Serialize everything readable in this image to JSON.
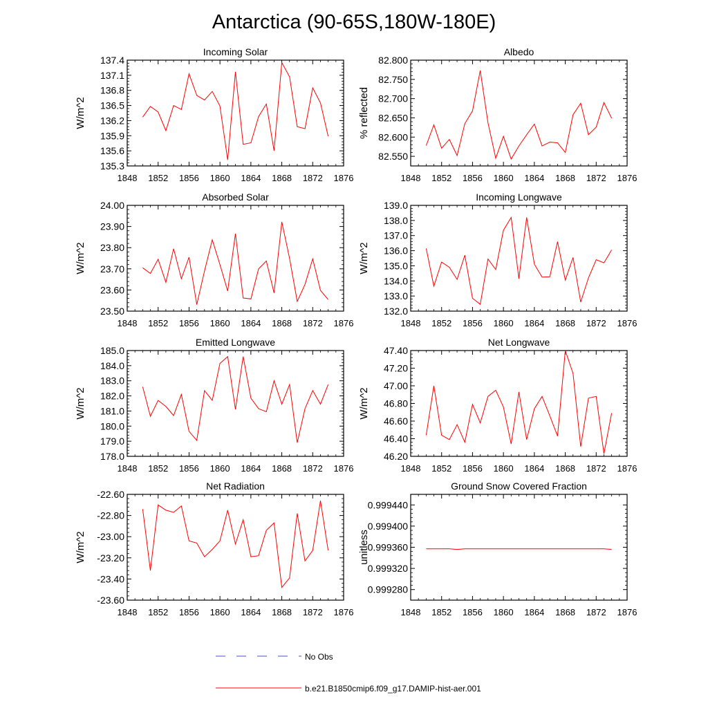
{
  "figure_title": "Antarctica (90-65S,180W-180E)",
  "colors": {
    "model_line": "#ff0000",
    "obs_line": "#4b4bd6"
  },
  "legend": {
    "obs_label": "No Obs",
    "model_label": "b.e21.B1850cmip6.f09_g17.DAMIP-hist-aer.001"
  },
  "chart_data": [
    {
      "type": "line",
      "title": "Incoming Solar",
      "ylabel": "W/m^2",
      "xlim": [
        1848,
        1876
      ],
      "ylim": [
        135.3,
        137.4
      ],
      "x_ticks": [
        1848,
        1852,
        1856,
        1860,
        1864,
        1868,
        1872,
        1876
      ],
      "x_tick_labels": [
        "1848",
        "1852",
        "1856",
        "1860",
        "1864",
        "1868",
        "1872",
        "1876"
      ],
      "y_ticks": [
        135.3,
        135.6,
        135.9,
        136.2,
        136.5,
        136.8,
        137.1,
        137.4
      ],
      "y_tick_labels": [
        "135.3",
        "135.6",
        "135.9",
        "136.2",
        "136.5",
        "136.8",
        "137.1",
        "137.4"
      ],
      "series": [
        {
          "x": [
            1850,
            1851,
            1852,
            1853,
            1854,
            1855,
            1856,
            1857,
            1858,
            1859,
            1860,
            1861,
            1862,
            1863,
            1864,
            1865,
            1866,
            1867,
            1868,
            1869,
            1870,
            1871,
            1872,
            1873,
            1874
          ],
          "y": [
            136.27,
            136.48,
            136.37,
            136.0,
            136.5,
            136.42,
            137.13,
            136.7,
            136.61,
            136.78,
            136.49,
            135.42,
            137.17,
            135.73,
            135.76,
            136.28,
            136.53,
            135.6,
            137.35,
            137.07,
            136.08,
            136.04,
            136.85,
            136.55,
            135.89
          ]
        }
      ]
    },
    {
      "type": "line",
      "title": "Albedo",
      "ylabel": "% reflected",
      "xlim": [
        1848,
        1876
      ],
      "ylim": [
        82.525,
        82.8
      ],
      "x_ticks": [
        1848,
        1852,
        1856,
        1860,
        1864,
        1868,
        1872,
        1876
      ],
      "x_tick_labels": [
        "1848",
        "1852",
        "1856",
        "1860",
        "1864",
        "1868",
        "1872",
        "1876"
      ],
      "y_ticks": [
        82.55,
        82.6,
        82.65,
        82.7,
        82.75,
        82.8
      ],
      "y_tick_labels": [
        "82.550",
        "82.600",
        "82.650",
        "82.700",
        "82.750",
        "82.800"
      ],
      "series": [
        {
          "x": [
            1850,
            1851,
            1852,
            1853,
            1854,
            1855,
            1856,
            1857,
            1858,
            1859,
            1860,
            1861,
            1862,
            1863,
            1864,
            1865,
            1866,
            1867,
            1868,
            1869,
            1870,
            1871,
            1872,
            1873,
            1874
          ],
          "y": [
            82.578,
            82.632,
            82.571,
            82.594,
            82.552,
            82.635,
            82.668,
            82.773,
            82.637,
            82.545,
            82.602,
            82.543,
            82.577,
            82.606,
            82.634,
            82.577,
            82.587,
            82.585,
            82.56,
            82.658,
            82.688,
            82.606,
            82.626,
            82.69,
            82.649
          ]
        }
      ]
    },
    {
      "type": "line",
      "title": "Absorbed Solar",
      "ylabel": "W/m^2",
      "xlim": [
        1848,
        1876
      ],
      "ylim": [
        23.5,
        24.0
      ],
      "x_ticks": [
        1848,
        1852,
        1856,
        1860,
        1864,
        1868,
        1872,
        1876
      ],
      "x_tick_labels": [
        "1848",
        "1852",
        "1856",
        "1860",
        "1864",
        "1868",
        "1872",
        "1876"
      ],
      "y_ticks": [
        23.5,
        23.6,
        23.7,
        23.8,
        23.9,
        24.0
      ],
      "y_tick_labels": [
        "23.50",
        "23.60",
        "23.70",
        "23.80",
        "23.90",
        "24.00"
      ],
      "series": [
        {
          "x": [
            1850,
            1851,
            1852,
            1853,
            1854,
            1855,
            1856,
            1857,
            1858,
            1859,
            1860,
            1861,
            1862,
            1863,
            1864,
            1865,
            1866,
            1867,
            1868,
            1869,
            1870,
            1871,
            1872,
            1873,
            1874
          ],
          "y": [
            23.705,
            23.678,
            23.745,
            23.636,
            23.795,
            23.653,
            23.755,
            23.531,
            23.69,
            23.837,
            23.72,
            23.595,
            23.866,
            23.562,
            23.558,
            23.7,
            23.737,
            23.586,
            23.922,
            23.749,
            23.546,
            23.626,
            23.747,
            23.598,
            23.555
          ]
        }
      ]
    },
    {
      "type": "line",
      "title": "Incoming Longwave",
      "ylabel": "W/m^2",
      "xlim": [
        1848,
        1876
      ],
      "ylim": [
        132.0,
        139.0
      ],
      "x_ticks": [
        1848,
        1852,
        1856,
        1860,
        1864,
        1868,
        1872,
        1876
      ],
      "x_tick_labels": [
        "1848",
        "1852",
        "1856",
        "1860",
        "1864",
        "1868",
        "1872",
        "1876"
      ],
      "y_ticks": [
        132,
        133,
        134,
        135,
        136,
        137,
        138,
        139
      ],
      "y_tick_labels": [
        "132.0",
        "133.0",
        "134.0",
        "135.0",
        "136.0",
        "137.0",
        "138.0",
        "139.0"
      ],
      "series": [
        {
          "x": [
            1850,
            1851,
            1852,
            1853,
            1854,
            1855,
            1856,
            1857,
            1858,
            1859,
            1860,
            1861,
            1862,
            1863,
            1864,
            1865,
            1866,
            1867,
            1868,
            1869,
            1870,
            1871,
            1872,
            1873,
            1874
          ],
          "y": [
            136.15,
            133.65,
            135.25,
            134.9,
            134.1,
            135.7,
            132.85,
            132.45,
            135.45,
            134.75,
            137.35,
            138.2,
            134.15,
            138.2,
            135.1,
            134.25,
            134.27,
            136.6,
            134.05,
            135.55,
            132.6,
            134.2,
            135.4,
            135.2,
            136.05
          ]
        }
      ]
    },
    {
      "type": "line",
      "title": "Emitted Longwave",
      "ylabel": "W/m^2",
      "xlim": [
        1848,
        1876
      ],
      "ylim": [
        178.0,
        185.0
      ],
      "x_ticks": [
        1848,
        1852,
        1856,
        1860,
        1864,
        1868,
        1872,
        1876
      ],
      "x_tick_labels": [
        "1848",
        "1852",
        "1856",
        "1860",
        "1864",
        "1868",
        "1872",
        "1876"
      ],
      "y_ticks": [
        178,
        179,
        180,
        181,
        182,
        183,
        184,
        185
      ],
      "y_tick_labels": [
        "178.0",
        "179.0",
        "180.0",
        "181.0",
        "182.0",
        "183.0",
        "184.0",
        "185.0"
      ],
      "series": [
        {
          "x": [
            1850,
            1851,
            1852,
            1853,
            1854,
            1855,
            1856,
            1857,
            1858,
            1859,
            1860,
            1861,
            1862,
            1863,
            1864,
            1865,
            1866,
            1867,
            1868,
            1869,
            1870,
            1871,
            1872,
            1873,
            1874
          ],
          "y": [
            182.6,
            180.65,
            181.7,
            181.3,
            180.7,
            182.1,
            179.65,
            179.05,
            182.35,
            181.7,
            184.15,
            184.6,
            181.1,
            184.6,
            181.85,
            181.15,
            180.95,
            183.0,
            181.45,
            182.75,
            178.9,
            181.15,
            182.35,
            181.45,
            182.75
          ]
        }
      ]
    },
    {
      "type": "line",
      "title": "Net Longwave",
      "ylabel": "W/m^2",
      "xlim": [
        1848,
        1876
      ],
      "ylim": [
        46.2,
        47.4
      ],
      "x_ticks": [
        1848,
        1852,
        1856,
        1860,
        1864,
        1868,
        1872,
        1876
      ],
      "x_tick_labels": [
        "1848",
        "1852",
        "1856",
        "1860",
        "1864",
        "1868",
        "1872",
        "1876"
      ],
      "y_ticks": [
        46.2,
        46.4,
        46.6,
        46.8,
        47.0,
        47.2,
        47.4
      ],
      "y_tick_labels": [
        "46.20",
        "46.40",
        "46.60",
        "46.80",
        "47.00",
        "47.20",
        "47.40"
      ],
      "series": [
        {
          "x": [
            1850,
            1851,
            1852,
            1853,
            1854,
            1855,
            1856,
            1857,
            1858,
            1859,
            1860,
            1861,
            1862,
            1863,
            1864,
            1865,
            1866,
            1867,
            1868,
            1869,
            1870,
            1871,
            1872,
            1873,
            1874
          ],
          "y": [
            46.44,
            47.0,
            46.44,
            46.39,
            46.56,
            46.36,
            46.79,
            46.58,
            46.88,
            46.95,
            46.76,
            46.34,
            46.93,
            46.39,
            46.74,
            46.88,
            46.66,
            46.43,
            47.4,
            47.14,
            46.31,
            46.86,
            46.88,
            46.23,
            46.69
          ]
        }
      ]
    },
    {
      "type": "line",
      "title": "Net Radiation",
      "ylabel": "W/m^2",
      "xlim": [
        1848,
        1876
      ],
      "ylim": [
        -23.6,
        -22.6
      ],
      "x_ticks": [
        1848,
        1852,
        1856,
        1860,
        1864,
        1868,
        1872,
        1876
      ],
      "x_tick_labels": [
        "1848",
        "1852",
        "1856",
        "1860",
        "1864",
        "1868",
        "1872",
        "1876"
      ],
      "y_ticks": [
        -23.6,
        -23.4,
        -23.2,
        -23.0,
        -22.8,
        -22.6
      ],
      "y_tick_labels": [
        "-23.60",
        "-23.40",
        "-23.20",
        "-23.00",
        "-22.80",
        "-22.60"
      ],
      "series": [
        {
          "x": [
            1850,
            1851,
            1852,
            1853,
            1854,
            1855,
            1856,
            1857,
            1858,
            1859,
            1860,
            1861,
            1862,
            1863,
            1864,
            1865,
            1866,
            1867,
            1868,
            1869,
            1870,
            1871,
            1872,
            1873,
            1874
          ],
          "y": [
            -22.74,
            -23.32,
            -22.7,
            -22.75,
            -22.77,
            -22.71,
            -23.04,
            -23.06,
            -23.19,
            -23.12,
            -23.04,
            -22.75,
            -23.07,
            -22.84,
            -23.19,
            -23.18,
            -22.94,
            -22.87,
            -23.48,
            -23.39,
            -22.78,
            -23.23,
            -23.13,
            -22.66,
            -23.13
          ]
        }
      ]
    },
    {
      "type": "line",
      "title": "Ground Snow Covered Fraction",
      "ylabel": "unitless",
      "xlim": [
        1848,
        1876
      ],
      "ylim": [
        0.99926,
        0.99946
      ],
      "x_ticks": [
        1848,
        1852,
        1856,
        1860,
        1864,
        1868,
        1872,
        1876
      ],
      "x_tick_labels": [
        "1848",
        "1852",
        "1856",
        "1860",
        "1864",
        "1868",
        "1872",
        "1876"
      ],
      "y_ticks": [
        0.99928,
        0.99932,
        0.99936,
        0.9994,
        0.99944
      ],
      "y_tick_labels": [
        "0.999280",
        "0.999320",
        "0.999360",
        "0.999400",
        "0.999440"
      ],
      "series": [
        {
          "x": [
            1850,
            1851,
            1852,
            1853,
            1854,
            1855,
            1856,
            1857,
            1858,
            1859,
            1860,
            1861,
            1862,
            1863,
            1864,
            1865,
            1866,
            1867,
            1868,
            1869,
            1870,
            1871,
            1872,
            1873,
            1874
          ],
          "y": [
            0.999357,
            0.999357,
            0.999357,
            0.999357,
            0.999356,
            0.999357,
            0.999357,
            0.999357,
            0.999357,
            0.999357,
            0.999357,
            0.999357,
            0.999357,
            0.999357,
            0.999357,
            0.999357,
            0.999357,
            0.999357,
            0.999357,
            0.999357,
            0.999357,
            0.999357,
            0.999357,
            0.999357,
            0.999356
          ]
        }
      ]
    }
  ]
}
